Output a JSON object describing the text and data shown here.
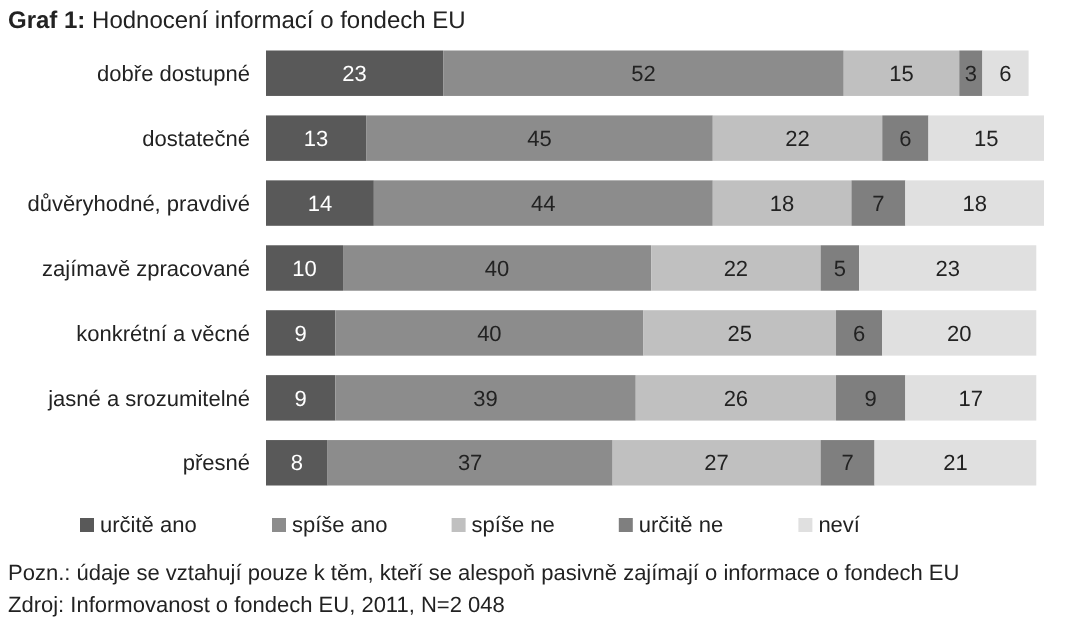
{
  "chart_data": {
    "type": "bar",
    "orientation": "horizontal",
    "stacked": true,
    "data_labels": true,
    "legend": "bottom",
    "title": "Graf 1: Hodnocení informací o fondech EU",
    "categories": [
      "dobře dostupné",
      "dostatečné",
      "důvěryhodné, pravdivé",
      "zajímavě zpracované",
      "konkrétní a věcné",
      "jasné a srozumitelné",
      "přesné"
    ],
    "series": [
      {
        "name": "určitě ano",
        "color": "#595959",
        "values": [
          23,
          13,
          14,
          10,
          9,
          9,
          8
        ]
      },
      {
        "name": "spíše ano",
        "color": "#8c8c8c",
        "values": [
          52,
          45,
          44,
          40,
          40,
          39,
          37
        ]
      },
      {
        "name": "spíše ne",
        "color": "#c0c0c0",
        "values": [
          15,
          22,
          18,
          22,
          25,
          26,
          27
        ]
      },
      {
        "name": "určitě ne",
        "color": "#7f7f7f",
        "values": [
          3,
          6,
          7,
          5,
          6,
          9,
          7
        ]
      },
      {
        "name": "neví",
        "color": "#e0e0e0",
        "values": [
          6,
          15,
          18,
          23,
          20,
          17,
          21
        ]
      }
    ],
    "annotations": [
      "Pozn.: údaje se vztahují pouze k těm, kteří se alespoň pasivně zajímají o informace o fondech EU",
      "Zdroj: Informovanost o fondech EU, 2011, N=2 048"
    ]
  }
}
